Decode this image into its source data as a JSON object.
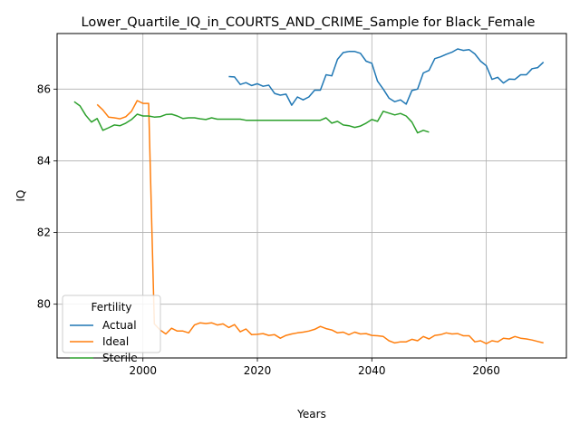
{
  "chart_data": {
    "type": "line",
    "title": "Lower_Quartile_IQ_in_COURTS_AND_CRIME_Sample for Black_Female",
    "xlabel": "Years",
    "ylabel": "IQ",
    "xlim": [
      1985,
      2074
    ],
    "ylim": [
      78.5,
      87.55
    ],
    "x_ticks": [
      {
        "value": 2000,
        "label": "2000"
      },
      {
        "value": 2020,
        "label": "2020"
      },
      {
        "value": 2040,
        "label": "2040"
      },
      {
        "value": 2060,
        "label": "2060"
      }
    ],
    "y_ticks": [
      {
        "value": 80,
        "label": "80"
      },
      {
        "value": 82,
        "label": "82"
      },
      {
        "value": 84,
        "label": "84"
      },
      {
        "value": 86,
        "label": "86"
      }
    ],
    "grid": true,
    "legend": {
      "title": "Fertility",
      "position": "bottom-left"
    },
    "series": [
      {
        "name": "Actual",
        "color": "#1f77b4",
        "x": [
          2015,
          2016,
          2017,
          2018,
          2019,
          2020,
          2021,
          2022,
          2023,
          2024,
          2025,
          2026,
          2027,
          2028,
          2029,
          2030,
          2031,
          2032,
          2033,
          2034,
          2035,
          2036,
          2037,
          2038,
          2039,
          2040,
          2041,
          2042,
          2043,
          2044,
          2045,
          2046,
          2047,
          2048,
          2049,
          2050,
          2051,
          2052,
          2053,
          2054,
          2055,
          2056,
          2057,
          2058,
          2059,
          2060,
          2061,
          2062,
          2063,
          2064,
          2065,
          2066,
          2067,
          2068,
          2069,
          2070
        ],
        "y": [
          86.35,
          86.34,
          86.13,
          86.18,
          86.1,
          86.15,
          86.08,
          86.11,
          85.88,
          85.83,
          85.86,
          85.55,
          85.78,
          85.7,
          85.78,
          85.97,
          85.97,
          86.4,
          86.37,
          86.83,
          87.02,
          87.05,
          87.05,
          87.0,
          86.78,
          86.72,
          86.22,
          86.0,
          85.75,
          85.65,
          85.7,
          85.58,
          85.96,
          86.0,
          86.45,
          86.52,
          86.85,
          86.9,
          86.97,
          87.03,
          87.12,
          87.08,
          87.1,
          86.98,
          86.78,
          86.65,
          86.27,
          86.33,
          86.17,
          86.28,
          86.27,
          86.4,
          86.4,
          86.57,
          86.6,
          86.75
        ]
      },
      {
        "name": "Ideal",
        "color": "#ff7f0e",
        "x": [
          1992,
          1993,
          1994,
          1995,
          1996,
          1997,
          1998,
          1999,
          2000,
          2001,
          2002,
          2003,
          2004,
          2005,
          2006,
          2007,
          2008,
          2009,
          2010,
          2011,
          2012,
          2013,
          2014,
          2015,
          2016,
          2017,
          2018,
          2019,
          2020,
          2021,
          2022,
          2023,
          2024,
          2025,
          2026,
          2027,
          2028,
          2029,
          2030,
          2031,
          2032,
          2033,
          2034,
          2035,
          2036,
          2037,
          2038,
          2039,
          2040,
          2041,
          2042,
          2043,
          2044,
          2045,
          2046,
          2047,
          2048,
          2049,
          2050,
          2051,
          2052,
          2053,
          2054,
          2055,
          2056,
          2057,
          2058,
          2059,
          2060,
          2061,
          2062,
          2063,
          2064,
          2065,
          2066,
          2067,
          2068,
          2069,
          2070
        ],
        "y": [
          85.57,
          85.42,
          85.22,
          85.2,
          85.17,
          85.23,
          85.38,
          85.68,
          85.6,
          85.6,
          79.45,
          79.28,
          79.17,
          79.33,
          79.25,
          79.25,
          79.2,
          79.42,
          79.48,
          79.46,
          79.48,
          79.42,
          79.45,
          79.35,
          79.43,
          79.23,
          79.31,
          79.15,
          79.16,
          79.18,
          79.13,
          79.15,
          79.05,
          79.13,
          79.17,
          79.2,
          79.22,
          79.25,
          79.3,
          79.38,
          79.32,
          79.28,
          79.2,
          79.22,
          79.15,
          79.22,
          79.17,
          79.18,
          79.13,
          79.12,
          79.1,
          78.98,
          78.92,
          78.95,
          78.95,
          79.02,
          78.98,
          79.1,
          79.03,
          79.13,
          79.15,
          79.2,
          79.17,
          79.18,
          79.12,
          79.12,
          78.95,
          78.98,
          78.9,
          78.98,
          78.95,
          79.05,
          79.03,
          79.1,
          79.05,
          79.03,
          79.0,
          78.96,
          78.92
        ]
      },
      {
        "name": "Sterile",
        "color": "#2ca02c",
        "x": [
          1988,
          1989,
          1990,
          1991,
          1992,
          1993,
          1994,
          1995,
          1996,
          1997,
          1998,
          1999,
          2000,
          2001,
          2002,
          2003,
          2004,
          2005,
          2006,
          2007,
          2008,
          2009,
          2010,
          2011,
          2012,
          2013,
          2014,
          2015,
          2016,
          2017,
          2018,
          2019,
          2020,
          2021,
          2022,
          2023,
          2024,
          2025,
          2026,
          2027,
          2028,
          2029,
          2030,
          2031,
          2032,
          2033,
          2034,
          2035,
          2036,
          2037,
          2038,
          2039,
          2040,
          2041,
          2042,
          2043,
          2044,
          2045,
          2046,
          2047,
          2048,
          2049,
          2050
        ],
        "y": [
          85.65,
          85.53,
          85.27,
          85.08,
          85.18,
          84.85,
          84.92,
          85.0,
          84.98,
          85.05,
          85.15,
          85.3,
          85.25,
          85.25,
          85.22,
          85.23,
          85.29,
          85.3,
          85.25,
          85.18,
          85.2,
          85.2,
          85.17,
          85.15,
          85.2,
          85.16,
          85.16,
          85.16,
          85.16,
          85.16,
          85.13,
          85.13,
          85.13,
          85.13,
          85.13,
          85.13,
          85.13,
          85.13,
          85.13,
          85.13,
          85.13,
          85.13,
          85.13,
          85.13,
          85.2,
          85.05,
          85.1,
          85.0,
          84.98,
          84.93,
          84.97,
          85.05,
          85.15,
          85.1,
          85.38,
          85.33,
          85.28,
          85.32,
          85.25,
          85.08,
          84.78,
          84.85,
          84.8
        ]
      }
    ]
  }
}
